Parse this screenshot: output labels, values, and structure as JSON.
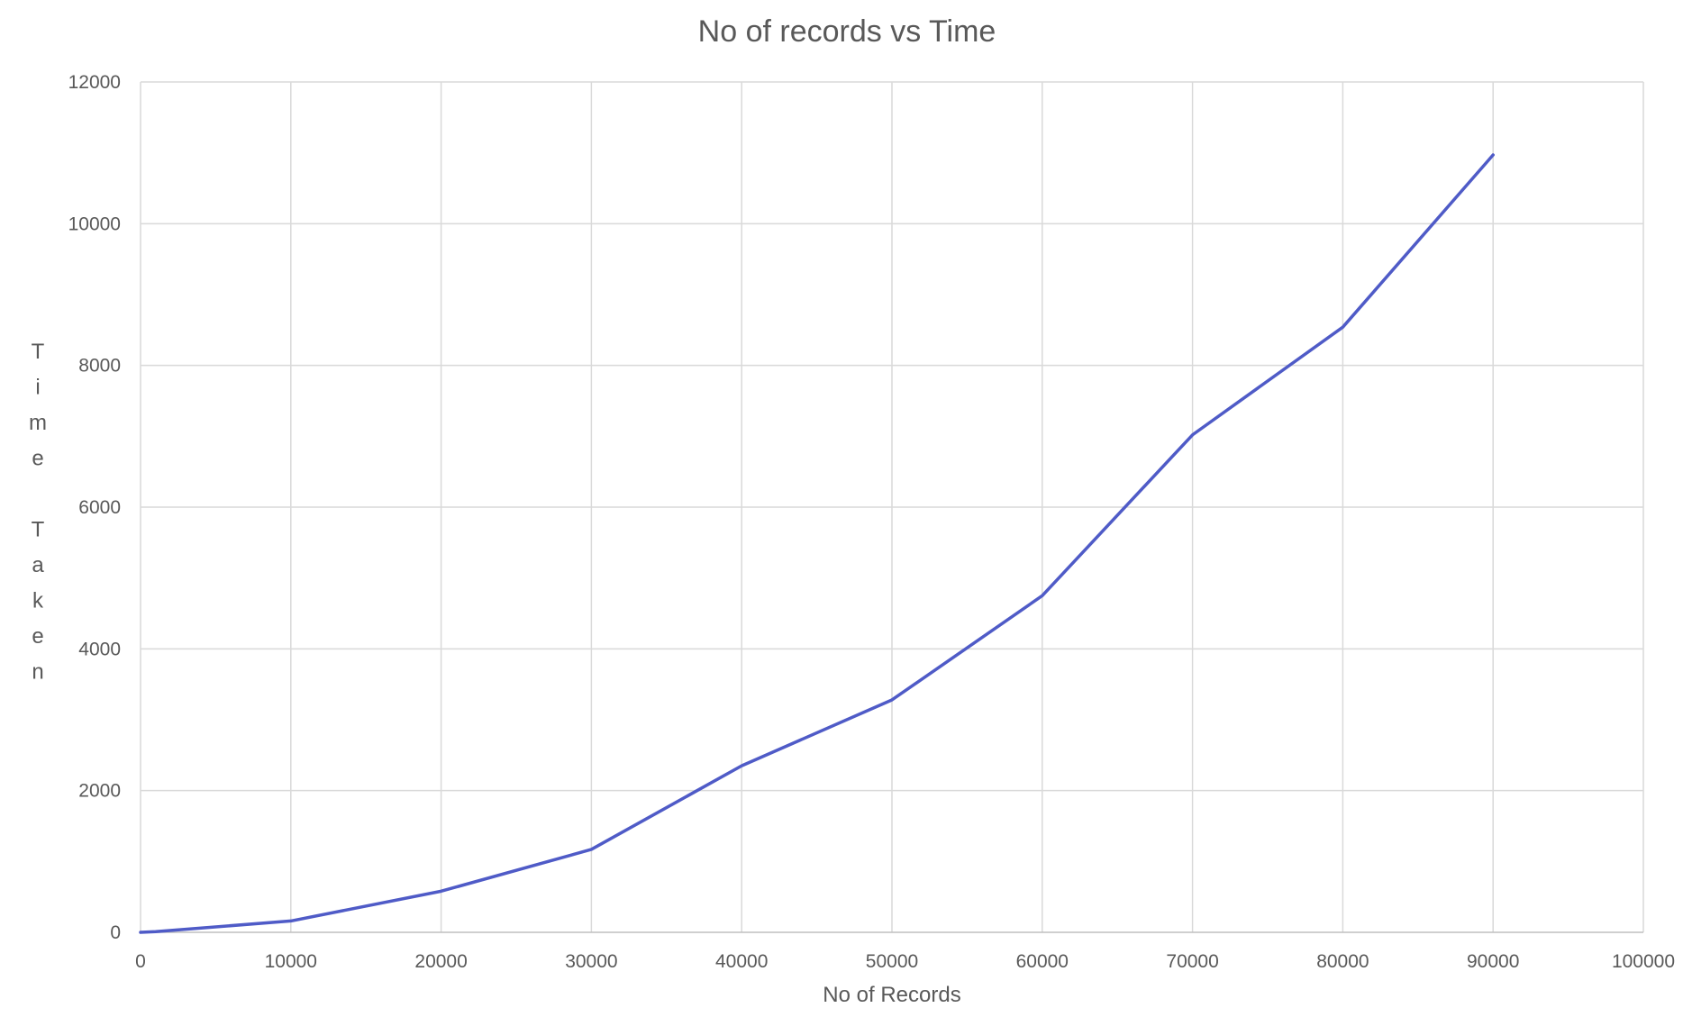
{
  "chart_data": {
    "type": "line",
    "title": "No of records vs Time",
    "xlabel": "No of Records",
    "ylabel": "Time Taken",
    "xlim": [
      0,
      100000
    ],
    "ylim": [
      0,
      12000
    ],
    "xticks": [
      0,
      10000,
      20000,
      30000,
      40000,
      50000,
      60000,
      70000,
      80000,
      90000,
      100000
    ],
    "yticks": [
      0,
      2000,
      4000,
      6000,
      8000,
      10000,
      12000
    ],
    "grid": true,
    "legend": "none",
    "series": [
      {
        "color": "#4f5bc7",
        "x": [
          0,
          1000,
          10000,
          20000,
          30000,
          40000,
          50000,
          60000,
          70000,
          80000,
          90000
        ],
        "y": [
          0,
          10,
          160,
          580,
          1170,
          2350,
          3280,
          4750,
          7020,
          8540,
          10970
        ]
      }
    ]
  }
}
